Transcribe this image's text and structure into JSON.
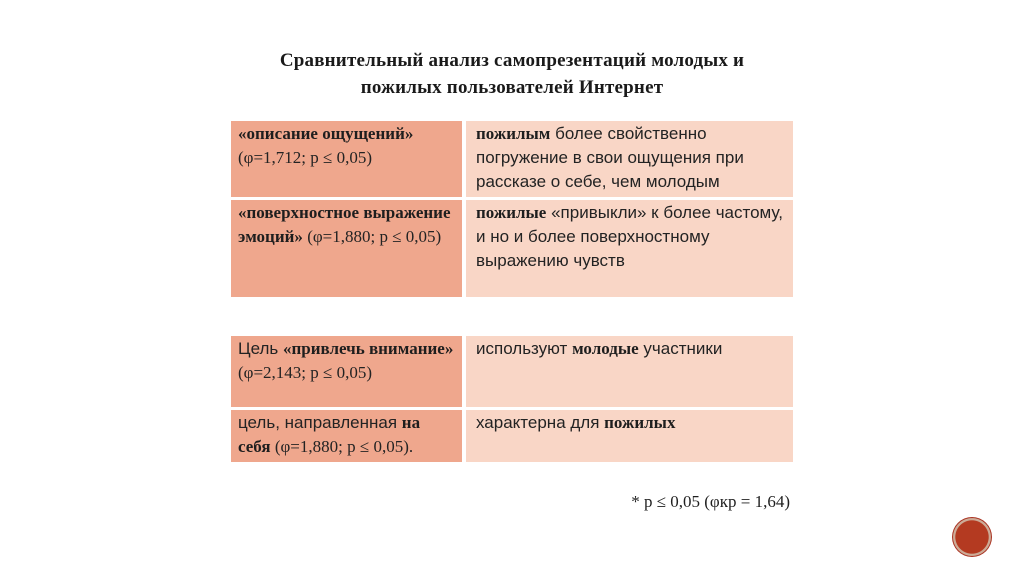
{
  "slide": {
    "title": {
      "lines": [
        "Сравнительный анализ самопрезентаций молодых и",
        "пожилых пользователей Интернет"
      ]
    },
    "tables": [
      {
        "rows": [
          {
            "left": [
              {
                "text": "«описание ощущений»",
                "bold": true
              },
              {
                "text": " (φ=1,712; p ≤ 0,05)",
                "serif": true
              }
            ],
            "right": [
              {
                "text": "пожилым",
                "bold": true
              },
              {
                "text": " более свойственно погружение в свои ощущения при рассказе о себе, чем молодым"
              }
            ]
          },
          {
            "left": [
              {
                "text": "«поверхностное выражение эмоций»",
                "bold": true
              },
              {
                "text": " (φ=1,880; p ≤ 0,05)",
                "serif": true
              }
            ],
            "right": [
              {
                "text": "пожилые",
                "bold": true
              },
              {
                "text": " «привыкли» к более частому, и но и более поверхностному выражению чувств"
              }
            ]
          }
        ]
      },
      {
        "rows": [
          {
            "left": [
              {
                "text": "Цель "
              },
              {
                "text": "«привлечь внимание»",
                "bold": true
              },
              {
                "text": " (φ=2,143; p ≤ 0,05)",
                "serif": true
              }
            ],
            "right": [
              {
                "text": "используют "
              },
              {
                "text": "молодые",
                "bold": true
              },
              {
                "text": " участники"
              }
            ]
          },
          {
            "left": [
              {
                "text": "цель, направленная "
              },
              {
                "text": "на себя",
                "bold": true
              },
              {
                "text": " (φ=1,880; p ≤ 0,05).",
                "serif": true
              }
            ],
            "right": [
              {
                "text": "характерна для "
              },
              {
                "text": "пожилых",
                "bold": true
              }
            ]
          }
        ]
      }
    ],
    "footnote": "* p ≤ 0,05 (φкр = 1,64)",
    "seal_icon": "red-stamp-circle",
    "colors": {
      "term_cell_bg": "#efa78d",
      "desc_cell_bg": "#f9d6c6",
      "seal": "#a93120",
      "text": "#232323"
    }
  }
}
